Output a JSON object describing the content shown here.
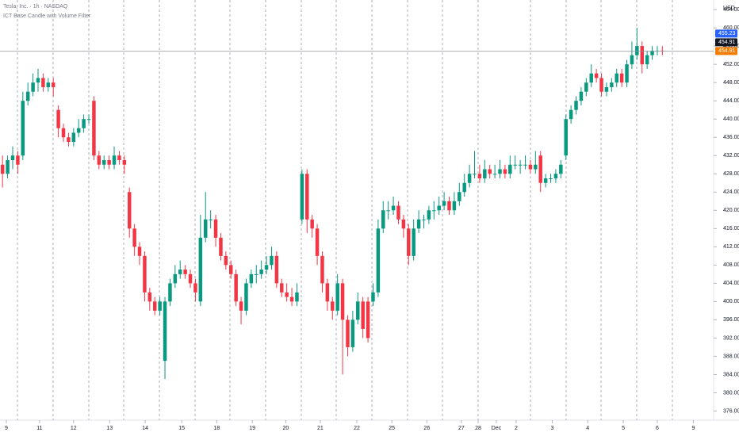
{
  "header": {
    "symbol": "Tesla, Inc. · 1h · NASDAQ",
    "indicator": "ICT Base Candle with Volume Filter"
  },
  "chart_data": {
    "type": "candlestick",
    "currency": "USD",
    "up_color": "#089981",
    "down_color": "#f23645",
    "ylim": [
      374,
      466.1
    ],
    "xlim": [
      -0.5,
      140.1
    ],
    "yticks": [
      {
        "value": 376,
        "label": "376.00"
      },
      {
        "value": 380,
        "label": "380.00"
      },
      {
        "value": 384,
        "label": "384.00"
      },
      {
        "value": 388,
        "label": "388.00"
      },
      {
        "value": 392,
        "label": "392.00"
      },
      {
        "value": 396,
        "label": "396.00"
      },
      {
        "value": 400,
        "label": "400.00"
      },
      {
        "value": 404,
        "label": "404.00"
      },
      {
        "value": 408,
        "label": "408.00"
      },
      {
        "value": 412,
        "label": "412.00"
      },
      {
        "value": 416,
        "label": "416.00"
      },
      {
        "value": 420,
        "label": "420.00"
      },
      {
        "value": 424,
        "label": "424.00"
      },
      {
        "value": 428,
        "label": "428.00"
      },
      {
        "value": 432,
        "label": "432.00"
      },
      {
        "value": 436,
        "label": "436.00"
      },
      {
        "value": 440,
        "label": "440.00"
      },
      {
        "value": 444,
        "label": "444.00"
      },
      {
        "value": 448,
        "label": "448.00"
      },
      {
        "value": 452,
        "label": "452.00"
      },
      {
        "value": 456,
        "label": "456.00"
      },
      {
        "value": 460,
        "label": "460.00"
      },
      {
        "value": 464,
        "label": "464.00"
      }
    ],
    "xticks": [
      {
        "value": 0.75,
        "label": "9"
      },
      {
        "value": 7.3,
        "label": "11"
      },
      {
        "value": 14,
        "label": "12"
      },
      {
        "value": 21.1,
        "label": "13"
      },
      {
        "value": 28.1,
        "label": "14"
      },
      {
        "value": 35.3,
        "label": "15"
      },
      {
        "value": 42.2,
        "label": "18"
      },
      {
        "value": 49.2,
        "label": "19"
      },
      {
        "value": 55.8,
        "label": "20"
      },
      {
        "value": 62.6,
        "label": "21"
      },
      {
        "value": 69.8,
        "label": "22"
      },
      {
        "value": 76.7,
        "label": "25"
      },
      {
        "value": 83.6,
        "label": "26"
      },
      {
        "value": 90.4,
        "label": "27"
      },
      {
        "value": 93.7,
        "label": "28"
      },
      {
        "value": 97.3,
        "label": "Dec"
      },
      {
        "value": 101.2,
        "label": "2"
      },
      {
        "value": 108.3,
        "label": "3"
      },
      {
        "value": 115.3,
        "label": "4"
      },
      {
        "value": 122.3,
        "label": "5"
      },
      {
        "value": 129,
        "label": "6"
      },
      {
        "value": 136.1,
        "label": "9"
      }
    ],
    "price_tags": [
      {
        "value": 455.23,
        "color": "#2962ff"
      },
      {
        "value": 454.91,
        "color": "#131722"
      },
      {
        "value": 454.91,
        "color": "#f57c00"
      }
    ],
    "candles": [
      [
        430,
        432,
        425,
        428
      ],
      [
        428,
        432,
        427,
        431
      ],
      [
        431,
        434,
        429,
        432
      ],
      [
        432,
        433,
        428,
        430
      ],
      [
        432,
        446,
        431,
        444
      ],
      [
        444,
        448,
        443,
        446
      ],
      [
        446,
        450,
        445,
        448
      ],
      [
        448,
        451,
        446,
        449
      ],
      [
        449,
        450,
        446,
        447
      ],
      [
        447,
        449,
        446,
        448
      ],
      [
        448,
        449,
        445,
        447
      ],
      [
        442,
        443,
        436,
        438
      ],
      [
        438,
        439,
        435,
        436
      ],
      [
        436,
        437,
        434,
        435
      ],
      [
        435,
        438,
        434,
        437
      ],
      [
        437,
        440,
        436,
        438
      ],
      [
        438,
        441,
        437,
        440
      ],
      [
        440,
        441,
        439,
        440
      ],
      [
        444,
        445,
        431,
        432
      ],
      [
        432,
        433,
        429,
        430
      ],
      [
        430,
        432,
        429,
        431
      ],
      [
        431,
        432,
        429,
        430
      ],
      [
        430,
        434,
        429,
        432
      ],
      [
        432,
        433,
        430,
        431
      ],
      [
        431,
        432,
        428,
        430
      ],
      [
        424,
        425,
        414,
        416
      ],
      [
        416,
        417,
        410,
        412
      ],
      [
        412,
        413,
        408,
        410
      ],
      [
        410,
        411,
        400,
        402
      ],
      [
        402,
        403,
        398,
        400
      ],
      [
        400,
        401,
        397,
        398
      ],
      [
        398,
        401,
        397,
        400
      ],
      [
        387,
        401,
        383,
        400
      ],
      [
        400,
        405,
        399,
        404
      ],
      [
        404,
        408,
        403,
        406
      ],
      [
        406,
        409,
        405,
        407
      ],
      [
        407,
        408,
        405,
        406
      ],
      [
        406,
        407,
        403,
        404
      ],
      [
        404,
        405,
        400,
        402
      ],
      [
        400,
        419,
        399,
        414
      ],
      [
        414,
        424,
        413,
        418
      ],
      [
        418,
        420,
        416,
        418
      ],
      [
        418,
        419,
        412,
        414
      ],
      [
        414,
        415,
        409,
        410
      ],
      [
        410,
        411,
        407,
        408
      ],
      [
        408,
        409,
        405,
        406
      ],
      [
        406,
        407,
        399,
        400
      ],
      [
        400,
        401,
        395,
        398
      ],
      [
        398,
        405,
        397,
        404
      ],
      [
        404,
        407,
        403,
        406
      ],
      [
        406,
        408,
        404,
        406
      ],
      [
        406,
        409,
        405,
        407
      ],
      [
        407,
        410,
        406,
        408
      ],
      [
        408,
        412,
        407,
        410
      ],
      [
        410,
        411,
        403,
        404
      ],
      [
        404,
        405,
        401,
        402
      ],
      [
        402,
        404,
        400,
        401
      ],
      [
        401,
        403,
        399,
        400
      ],
      [
        400,
        404,
        399,
        402
      ],
      [
        418,
        429,
        417,
        428
      ],
      [
        428,
        429,
        415,
        418
      ],
      [
        418,
        419,
        414,
        416
      ],
      [
        416,
        417,
        408,
        410
      ],
      [
        410,
        411,
        402,
        404
      ],
      [
        404,
        405,
        398,
        400
      ],
      [
        400,
        401,
        396,
        398
      ],
      [
        398,
        406,
        397,
        404
      ],
      [
        404,
        405,
        384,
        396
      ],
      [
        396,
        397,
        388,
        390
      ],
      [
        390,
        398,
        389,
        396
      ],
      [
        396,
        402,
        395,
        400
      ],
      [
        400,
        401,
        392,
        394
      ],
      [
        400,
        401,
        391,
        392
      ],
      [
        400,
        404,
        399,
        402
      ],
      [
        402,
        418,
        401,
        416
      ],
      [
        416,
        422,
        415,
        420
      ],
      [
        420,
        422,
        418,
        420
      ],
      [
        420,
        423,
        419,
        421
      ],
      [
        421,
        422,
        417,
        418
      ],
      [
        418,
        419,
        414,
        416
      ],
      [
        416,
        417,
        408,
        410
      ],
      [
        410,
        418,
        409,
        416
      ],
      [
        416,
        420,
        415,
        418
      ],
      [
        418,
        419,
        416,
        418
      ],
      [
        418,
        421,
        417,
        420
      ],
      [
        420,
        422,
        418,
        420
      ],
      [
        420,
        423,
        419,
        421
      ],
      [
        421,
        424,
        420,
        422
      ],
      [
        422,
        423,
        419,
        420
      ],
      [
        420,
        424,
        419,
        422
      ],
      [
        422,
        426,
        421,
        424
      ],
      [
        424,
        428,
        423,
        426
      ],
      [
        426,
        430,
        425,
        428
      ],
      [
        428,
        433,
        427,
        428
      ],
      [
        428,
        430,
        426,
        427
      ],
      [
        427,
        431,
        426,
        429
      ],
      [
        429,
        430,
        427,
        428
      ],
      [
        428,
        430,
        427,
        428
      ],
      [
        428,
        431,
        427,
        429
      ],
      [
        429,
        430,
        427,
        428
      ],
      [
        428,
        432,
        427,
        430
      ],
      [
        430,
        432,
        429,
        430
      ],
      [
        430,
        431,
        428,
        430
      ],
      [
        430,
        432,
        429,
        430
      ],
      [
        430,
        431,
        428,
        429
      ],
      [
        429,
        433,
        428,
        430
      ],
      [
        432,
        433,
        424,
        426
      ],
      [
        426,
        428,
        425,
        427
      ],
      [
        427,
        428,
        426,
        427
      ],
      [
        427,
        429,
        426,
        428
      ],
      [
        428,
        431,
        427,
        430
      ],
      [
        432,
        441,
        431,
        440
      ],
      [
        440,
        443,
        439,
        442
      ],
      [
        442,
        445,
        441,
        444
      ],
      [
        444,
        447,
        443,
        446
      ],
      [
        446,
        449,
        445,
        448
      ],
      [
        448,
        452,
        447,
        450
      ],
      [
        450,
        451,
        448,
        449
      ],
      [
        449,
        450,
        445,
        446
      ],
      [
        446,
        448,
        445,
        447
      ],
      [
        447,
        449,
        446,
        448
      ],
      [
        448,
        451,
        447,
        450
      ],
      [
        450,
        451,
        447,
        448
      ],
      [
        448,
        453,
        447,
        452
      ],
      [
        452,
        457,
        451,
        454
      ],
      [
        454,
        460,
        453,
        456
      ],
      [
        456,
        457,
        450,
        452
      ],
      [
        452,
        455,
        451,
        454
      ],
      [
        454,
        456,
        453,
        455
      ],
      [
        455,
        456,
        454,
        455
      ],
      [
        455,
        456,
        454,
        454.91
      ]
    ]
  }
}
